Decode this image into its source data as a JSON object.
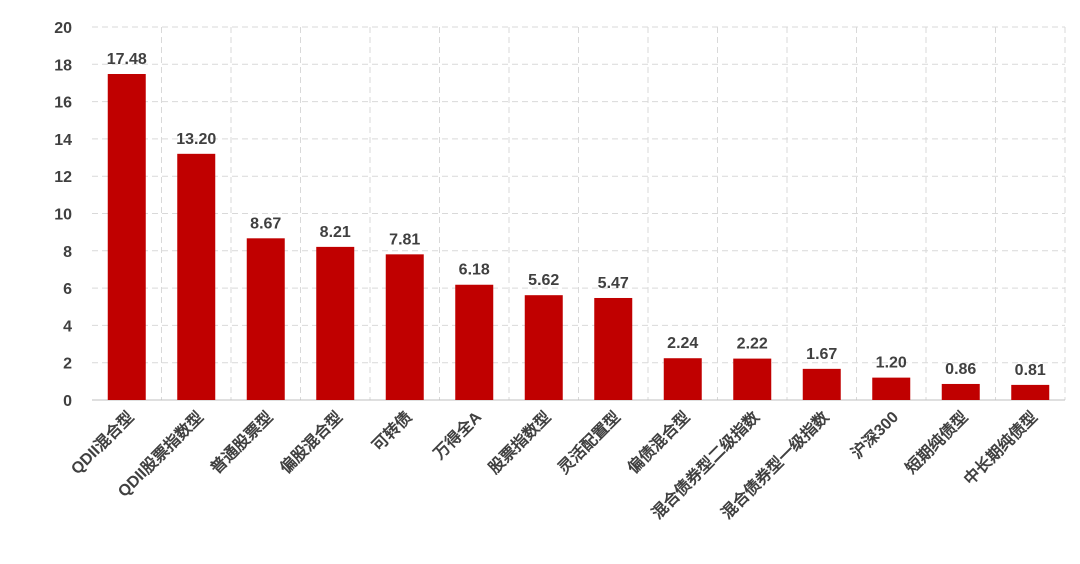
{
  "chart_data": {
    "type": "bar",
    "categories": [
      "QDII混合型",
      "QDII股票指数型",
      "普通股票型",
      "偏股混合型",
      "可转债",
      "万得全A",
      "股票指数型",
      "灵活配置型",
      "偏债混合型",
      "混合债券型二级指数",
      "混合债券型一级指数",
      "沪深300",
      "短期纯债型",
      "中长期纯债型"
    ],
    "values": [
      17.48,
      13.2,
      8.67,
      8.21,
      7.81,
      6.18,
      5.62,
      5.47,
      2.24,
      2.22,
      1.67,
      1.2,
      0.86,
      0.81
    ],
    "value_labels": [
      "17.48",
      "13.20",
      "8.67",
      "8.21",
      "7.81",
      "6.18",
      "5.62",
      "5.47",
      "2.24",
      "2.22",
      "1.67",
      "1.20",
      "0.86",
      "0.81"
    ],
    "color": "#c00000",
    "ylim": [
      0,
      20
    ],
    "yticks": [
      0,
      2,
      4,
      6,
      8,
      10,
      12,
      14,
      16,
      18,
      20
    ],
    "grid": true
  }
}
